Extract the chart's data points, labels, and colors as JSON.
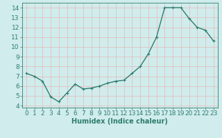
{
  "x": [
    0,
    1,
    2,
    3,
    4,
    5,
    6,
    7,
    8,
    9,
    10,
    11,
    12,
    13,
    14,
    15,
    16,
    17,
    18,
    19,
    20,
    21,
    22,
    23
  ],
  "y": [
    7.3,
    7.0,
    6.5,
    4.9,
    4.4,
    5.3,
    6.2,
    5.7,
    5.8,
    6.0,
    6.3,
    6.5,
    6.6,
    7.3,
    8.0,
    9.3,
    11.0,
    14.0,
    14.0,
    14.0,
    12.9,
    12.0,
    11.7,
    10.6
  ],
  "line_color": "#2e7d6e",
  "marker": "+",
  "marker_size": 3,
  "linewidth": 1.0,
  "bg_color": "#d0ecec",
  "grid_color": "#b8d8d8",
  "xlabel": "Humidex (Indice chaleur)",
  "xlabel_fontsize": 7,
  "tick_fontsize": 6.5,
  "xlim": [
    -0.5,
    23.5
  ],
  "ylim": [
    3.8,
    14.5
  ],
  "yticks": [
    4,
    5,
    6,
    7,
    8,
    9,
    10,
    11,
    12,
    13,
    14
  ],
  "xticks": [
    0,
    1,
    2,
    3,
    4,
    5,
    6,
    7,
    8,
    9,
    10,
    11,
    12,
    13,
    14,
    15,
    16,
    17,
    18,
    19,
    20,
    21,
    22,
    23
  ]
}
